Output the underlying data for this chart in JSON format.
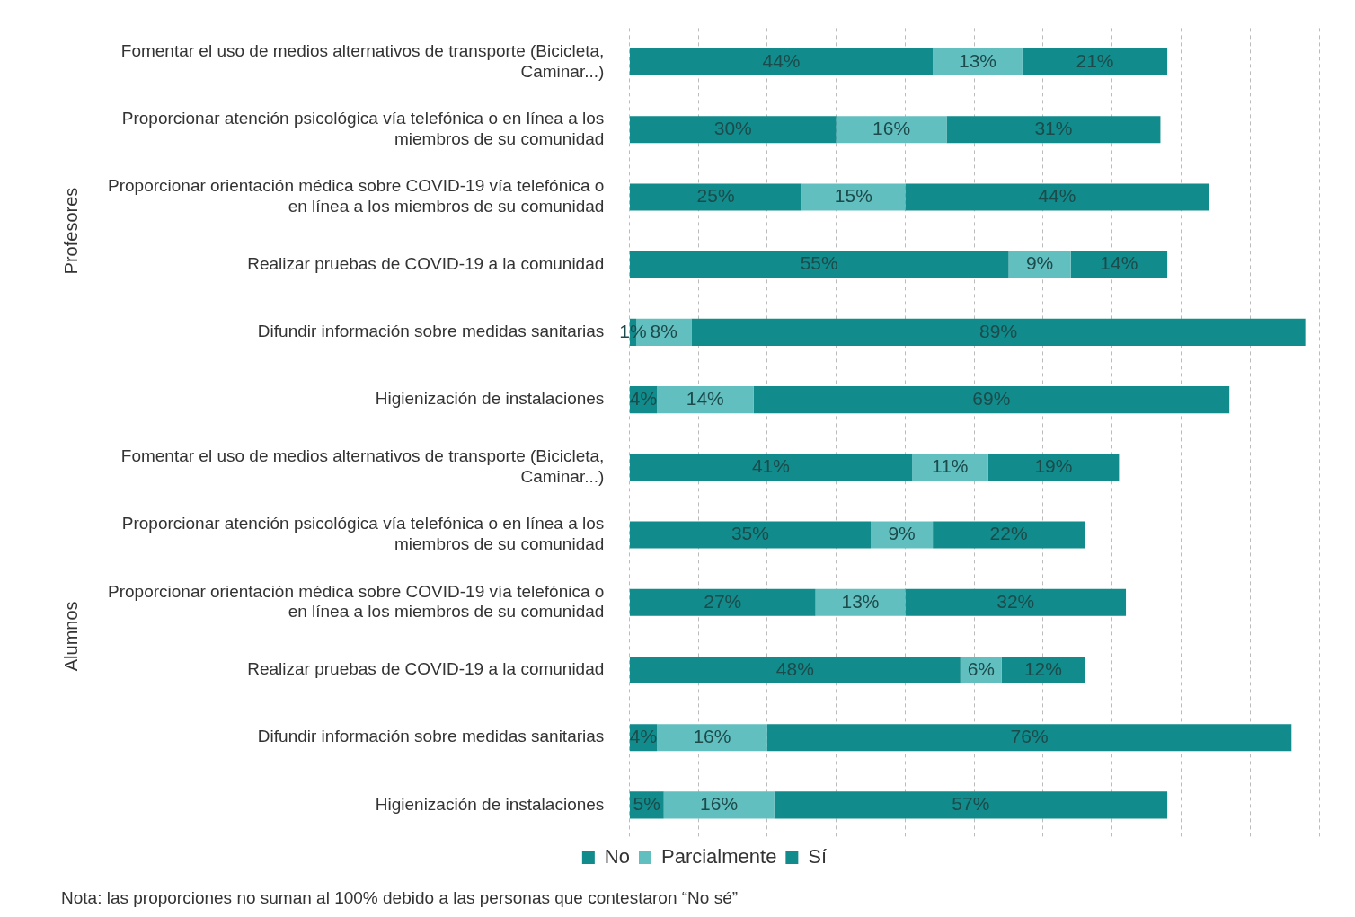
{
  "chart_data": {
    "type": "bar",
    "orientation": "horizontal",
    "stacked": true,
    "categories": [
      "Fomentar el uso de medios alternativos de transporte (Bicicleta, Caminar...)",
      "Proporcionar atención psicológica vía telefónica o en línea a los miembros de su comunidad",
      "Proporcionar orientación médica sobre COVID-19 vía telefónica o en línea a los miembros de su comunidad",
      "Realizar pruebas de COVID-19 a la comunidad",
      "Difundir información sobre medidas sanitarias",
      "Higienización de instalaciones",
      "Fomentar el uso de medios alternativos de transporte (Bicicleta, Caminar...)",
      "Proporcionar atención psicológica vía telefónica o en línea a los miembros de su comunidad",
      "Proporcionar orientación médica sobre COVID-19 vía telefónica o en línea a los miembros de su comunidad",
      "Realizar pruebas de COVID-19 a la comunidad",
      "Difundir información sobre medidas sanitarias",
      "Higienización de instalaciones"
    ],
    "series": [
      {
        "name": "No",
        "color": "#118b8b",
        "values": [
          44,
          30,
          25,
          55,
          1,
          4,
          41,
          35,
          27,
          48,
          4,
          5
        ],
        "value_labels": [
          "44%",
          "30%",
          "25%",
          "55%",
          "1%",
          "4%",
          "41%",
          "35%",
          "27%",
          "48%",
          "4%",
          "5%"
        ]
      },
      {
        "name": "Parcialmente",
        "color": "#62bfc0",
        "values": [
          13,
          16,
          15,
          9,
          8,
          14,
          11,
          9,
          13,
          6,
          16,
          16
        ],
        "value_labels": [
          "13%",
          "16%",
          "15%",
          "9%",
          "8%",
          "14%",
          "11%",
          "9%",
          "13%",
          "6%",
          "16%",
          "16%"
        ]
      },
      {
        "name": "Sí",
        "color": "#118b8b",
        "values": [
          21,
          31,
          44,
          14,
          89,
          69,
          19,
          22,
          32,
          12,
          76,
          57
        ],
        "value_labels": [
          "21%",
          "31%",
          "44%",
          "14%",
          "89%",
          "69%",
          "19%",
          "22%",
          "32%",
          "12%",
          "76%",
          "57%"
        ]
      }
    ],
    "tick_labels": "y",
    "grid": "x",
    "legend": "bottom",
    "annotations": [
      "Profesores",
      "Alumnos",
      "Nota: las proporciones no suman al 100% debido a las personas que contestaron “No sé”"
    ]
  }
}
